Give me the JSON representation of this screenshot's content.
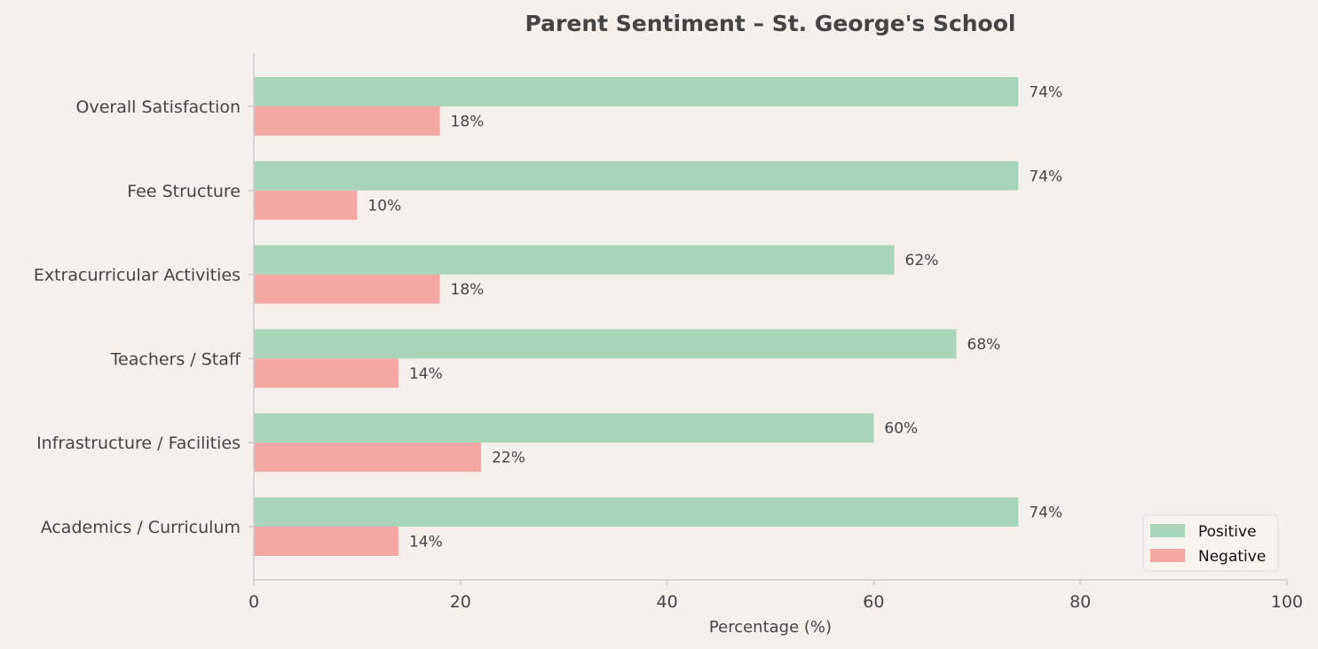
{
  "chart_data": {
    "type": "bar",
    "orientation": "horizontal",
    "title": "Parent Sentiment – St. George's School",
    "xlabel": "Percentage (%)",
    "ylabel": "",
    "xlim": [
      0,
      100
    ],
    "x_ticks": [
      "0",
      "20",
      "40",
      "60",
      "80",
      "100"
    ],
    "categories": [
      "Overall Satisfaction",
      "Fee Structure",
      "Extracurricular Activities",
      "Teachers / Staff",
      "Infrastructure / Facilities",
      "Academics / Curriculum"
    ],
    "series": [
      {
        "name": "Positive",
        "color": "#a8d5b9",
        "values": [
          74,
          74,
          62,
          68,
          60,
          74
        ],
        "labels": [
          "74%",
          "74%",
          "62%",
          "68%",
          "60%",
          "74%"
        ]
      },
      {
        "name": "Negative",
        "color": "#f5a8a3",
        "values": [
          18,
          10,
          18,
          14,
          22,
          14
        ],
        "labels": [
          "18%",
          "10%",
          "18%",
          "14%",
          "22%",
          "14%"
        ]
      }
    ],
    "grid": false,
    "legend_position": "bottom-right"
  }
}
